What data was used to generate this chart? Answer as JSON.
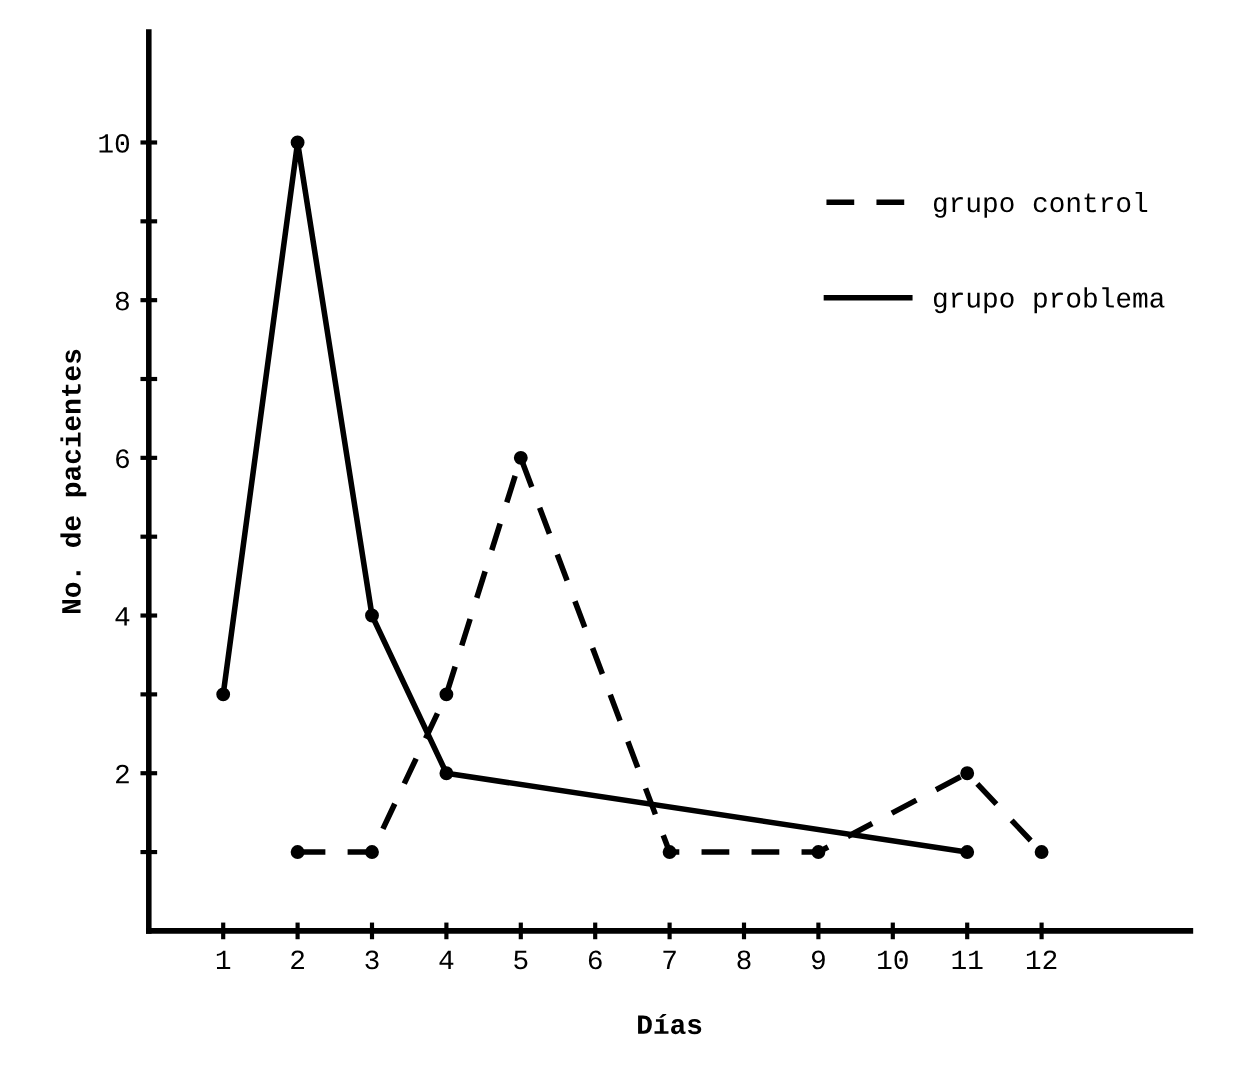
{
  "chart_data": {
    "type": "line",
    "xlabel": "Días",
    "ylabel": "No. de pacientes",
    "xlim": [
      0,
      14
    ],
    "xticks": [
      1,
      2,
      3,
      4,
      5,
      6,
      7,
      8,
      9,
      10,
      11,
      12
    ],
    "ylim": [
      0,
      11.4
    ],
    "yticks": [
      {
        "value": 1,
        "label": null
      },
      2,
      {
        "value": 3,
        "label": null
      },
      4,
      {
        "value": 5,
        "label": null
      },
      6,
      {
        "value": 7,
        "label": null
      },
      8,
      {
        "value": 9,
        "label": null
      },
      10
    ],
    "grid": false,
    "legend": "top right",
    "marker": "circle",
    "series": [
      {
        "name": "grupo control",
        "color": "#000000",
        "line_style": "dashed",
        "x": [
          2,
          3,
          4,
          5,
          7,
          9,
          11,
          12
        ],
        "values": [
          1,
          1,
          3,
          6,
          1,
          1,
          2,
          1
        ]
      },
      {
        "name": "grupo problema",
        "color": "#000000",
        "line_style": "solid",
        "x": [
          1,
          2,
          3,
          4,
          11
        ],
        "values": [
          3,
          10,
          4,
          2,
          1
        ]
      }
    ]
  }
}
